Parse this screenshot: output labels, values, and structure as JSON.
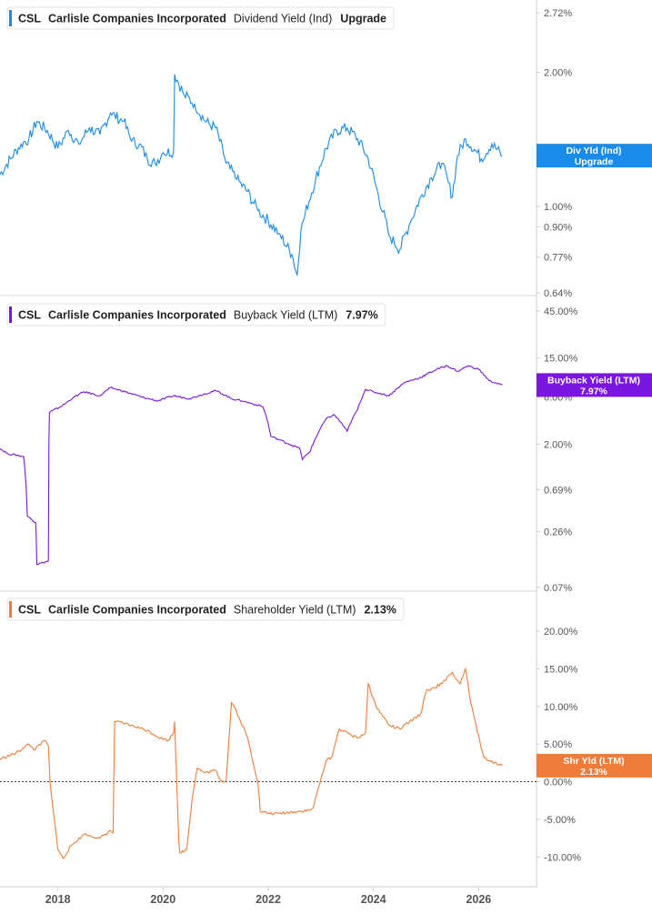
{
  "chart_data": [
    {
      "type": "line",
      "legend": {
        "ticker": "CSL",
        "company": "Carlisle Companies Incorporated",
        "metric": "Dividend Yield (Ind)",
        "value": "Upgrade"
      },
      "color": "#1a8be8",
      "scale": "log",
      "ylim": [
        0.64,
        2.72
      ],
      "y_ticks": [
        "2.72%",
        "2.00%",
        "1.00%",
        "0.90%",
        "0.77%",
        "0.64%"
      ],
      "y_tick_values": [
        2.72,
        2.0,
        1.0,
        0.9,
        0.77,
        0.64
      ],
      "tag": {
        "line1": "Div Yld (Ind)",
        "line2": "Upgrade",
        "value": 1.3
      },
      "x": [
        2016.9,
        2017.1,
        2017.3,
        2017.45,
        2017.6,
        2017.8,
        2018.0,
        2018.2,
        2018.4,
        2018.6,
        2018.8,
        2019.0,
        2019.25,
        2019.4,
        2019.55,
        2019.7,
        2019.85,
        2020.0,
        2020.2,
        2020.22,
        2020.4,
        2020.6,
        2020.8,
        2021.0,
        2021.2,
        2021.4,
        2021.6,
        2021.8,
        2022.0,
        2022.2,
        2022.45,
        2022.55,
        2022.62,
        2022.7,
        2022.9,
        2023.1,
        2023.3,
        2023.5,
        2023.7,
        2023.9,
        2024.1,
        2024.3,
        2024.5,
        2024.7,
        2024.9,
        2025.1,
        2025.3,
        2025.5,
        2025.6,
        2025.75,
        2025.95,
        2026.05,
        2026.25,
        2026.45
      ],
      "values": [
        1.18,
        1.28,
        1.38,
        1.42,
        1.55,
        1.48,
        1.35,
        1.48,
        1.38,
        1.5,
        1.45,
        1.62,
        1.55,
        1.4,
        1.38,
        1.28,
        1.25,
        1.32,
        1.33,
        1.98,
        1.78,
        1.7,
        1.55,
        1.5,
        1.25,
        1.15,
        1.08,
        0.98,
        0.93,
        0.87,
        0.78,
        0.7,
        0.88,
        0.96,
        1.15,
        1.35,
        1.48,
        1.5,
        1.42,
        1.28,
        1.05,
        0.86,
        0.8,
        0.92,
        1.05,
        1.16,
        1.25,
        1.05,
        1.3,
        1.42,
        1.33,
        1.28,
        1.38,
        1.3
      ]
    },
    {
      "type": "line",
      "legend": {
        "ticker": "CSL",
        "company": "Carlisle Companies Incorporated",
        "metric": "Buyback Yield (LTM)",
        "value": "7.97%"
      },
      "color": "#7b16e0",
      "scale": "log",
      "ylim": [
        0.07,
        45.0
      ],
      "y_ticks": [
        "45.00%",
        "15.00%",
        "6.00%",
        "2.00%",
        "0.69%",
        "0.26%",
        "0.07%"
      ],
      "y_tick_values": [
        45.0,
        15.0,
        6.0,
        2.0,
        0.69,
        0.26,
        0.07
      ],
      "tag": {
        "line1": "Buyback Yield (LTM)",
        "line2": "7.97%",
        "value": 7.97
      },
      "x": [
        2016.9,
        2017.05,
        2017.35,
        2017.42,
        2017.58,
        2017.6,
        2017.82,
        2017.84,
        2018.05,
        2018.15,
        2018.3,
        2018.5,
        2018.8,
        2019.0,
        2019.2,
        2019.6,
        2019.9,
        2020.2,
        2020.5,
        2020.8,
        2021.0,
        2021.3,
        2021.5,
        2021.9,
        2022.05,
        2022.4,
        2022.6,
        2022.65,
        2022.8,
        2022.95,
        2023.1,
        2023.25,
        2023.5,
        2023.7,
        2023.85,
        2024.0,
        2024.3,
        2024.6,
        2024.9,
        2025.2,
        2025.4,
        2025.6,
        2025.8,
        2026.0,
        2026.2,
        2026.45
      ],
      "values": [
        1.8,
        1.6,
        1.5,
        0.37,
        0.32,
        0.12,
        0.13,
        4.2,
        4.8,
        5.2,
        6.0,
        6.8,
        6.2,
        7.5,
        7.0,
        6.0,
        5.5,
        6.2,
        5.8,
        6.5,
        7.0,
        5.8,
        5.5,
        4.8,
        2.4,
        2.0,
        1.8,
        1.4,
        1.7,
        2.6,
        3.6,
        4.0,
        2.7,
        4.5,
        7.2,
        6.8,
        6.2,
        8.5,
        9.5,
        11.5,
        12.5,
        11.0,
        12.5,
        11.5,
        8.8,
        7.97
      ]
    },
    {
      "type": "line",
      "legend": {
        "ticker": "CSL",
        "company": "Carlisle Companies Incorporated",
        "metric": "Shareholder Yield (LTM)",
        "value": "2.13%"
      },
      "color": "#f07c3a",
      "scale": "linear",
      "ylim": [
        -13.0,
        22.0
      ],
      "y_ticks": [
        "20.00%",
        "15.00%",
        "10.00%",
        "5.00%",
        "0.00%",
        "-5.00%",
        "-10.00%"
      ],
      "y_tick_values": [
        20,
        15,
        10,
        5,
        0,
        -5,
        -10
      ],
      "zero_line": true,
      "tag": {
        "line1": "Shr Yld (LTM)",
        "line2": "2.13%",
        "value": 2.13
      },
      "x": [
        2016.9,
        2017.2,
        2017.35,
        2017.45,
        2017.55,
        2017.75,
        2017.82,
        2017.85,
        2018.0,
        2018.1,
        2018.25,
        2018.5,
        2018.8,
        2019.0,
        2019.05,
        2019.08,
        2019.4,
        2019.7,
        2019.95,
        2020.1,
        2020.2,
        2020.22,
        2020.3,
        2020.32,
        2020.45,
        2020.55,
        2020.58,
        2020.65,
        2020.72,
        2020.8,
        2021.0,
        2021.1,
        2021.2,
        2021.3,
        2021.35,
        2021.6,
        2021.8,
        2021.85,
        2022.1,
        2022.5,
        2022.8,
        2022.85,
        2023.1,
        2023.2,
        2023.35,
        2023.7,
        2023.85,
        2023.9,
        2024.05,
        2024.3,
        2024.5,
        2024.9,
        2025.0,
        2025.3,
        2025.5,
        2025.65,
        2025.75,
        2025.85,
        2025.95,
        2026.1,
        2026.2,
        2026.45
      ],
      "values": [
        3.0,
        3.8,
        4.5,
        5.0,
        4.2,
        5.5,
        4.8,
        0.0,
        -9.0,
        -10.2,
        -8.5,
        -7.0,
        -7.5,
        -6.5,
        -6.8,
        8.0,
        7.5,
        6.8,
        5.8,
        5.5,
        6.5,
        8.0,
        -8.0,
        -9.5,
        -9.0,
        -2.5,
        -1.0,
        1.8,
        1.5,
        1.2,
        1.5,
        0.1,
        0.1,
        10.5,
        10.0,
        6.0,
        0.0,
        -4.0,
        -4.3,
        -4.0,
        -3.8,
        -3.5,
        2.8,
        3.2,
        7.0,
        5.8,
        6.5,
        13.0,
        10.0,
        7.5,
        7.0,
        9.0,
        12.0,
        13.0,
        14.5,
        13.0,
        15.0,
        10.5,
        7.5,
        3.2,
        2.8,
        2.13
      ]
    }
  ],
  "x_axis": {
    "years": [
      "2018",
      "2020",
      "2022",
      "2024",
      "2026"
    ],
    "year_values": [
      2018,
      2020,
      2022,
      2024,
      2026
    ],
    "xlim": [
      2016.9,
      2027.1
    ]
  }
}
